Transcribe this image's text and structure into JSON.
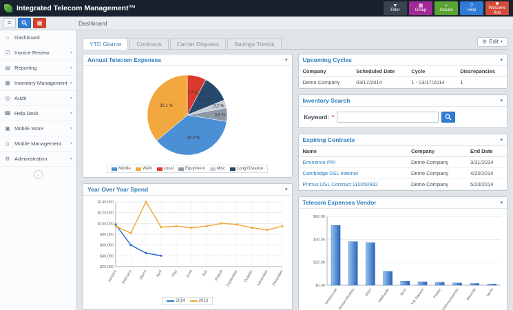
{
  "topbar": {
    "title": "Integrated Telecom Management™",
    "logo_icon": "leaf-icon",
    "buttons": [
      {
        "label": "Filter",
        "icon": "filter-icon",
        "color": "#39424e"
      },
      {
        "label": "Group",
        "icon": "group-icon",
        "color": "#a12b96"
      },
      {
        "label": "Include",
        "icon": "include-icon",
        "color": "#58a434"
      },
      {
        "label": "Help",
        "icon": "help-icon",
        "color": "#2f7cd6"
      },
      {
        "label": "Welcome Rob",
        "icon": "user-icon",
        "color": "#d24a38"
      }
    ]
  },
  "toolbar": {
    "buttons": [
      {
        "name": "menu-button",
        "icon": "menu-icon",
        "style": "plain"
      },
      {
        "name": "search-button",
        "icon": "search-icon",
        "style": "blue"
      },
      {
        "name": "apps-button",
        "icon": "apps-icon",
        "style": "red"
      }
    ],
    "breadcrumb": "Dashboard"
  },
  "sidebar": {
    "items": [
      {
        "label": "Dashboard",
        "icon": "home-icon",
        "expandable": false
      },
      {
        "label": "Invoice Review",
        "icon": "invoice-icon",
        "expandable": true
      },
      {
        "label": "Reporting",
        "icon": "report-icon",
        "expandable": true
      },
      {
        "label": "Inventory Management",
        "icon": "inventory-icon",
        "expandable": true
      },
      {
        "label": "Audit",
        "icon": "audit-icon",
        "expandable": true
      },
      {
        "label": "Help Desk",
        "icon": "helpdesk-icon",
        "expandable": true
      },
      {
        "label": "Mobile Store",
        "icon": "store-icon",
        "expandable": true
      },
      {
        "label": "Mobile Management",
        "icon": "mobile-icon",
        "expandable": true
      },
      {
        "label": "Administration",
        "icon": "admin-icon",
        "expandable": true
      }
    ]
  },
  "tabs": [
    {
      "label": "YTD Glance",
      "active": true
    },
    {
      "label": "Contracts",
      "active": false
    },
    {
      "label": "Carrier Disputes",
      "active": false
    },
    {
      "label": "Savings Trends",
      "active": false
    }
  ],
  "edit_menu": {
    "label": "Edit",
    "icon": "gear-icon"
  },
  "panels": {
    "annual_expenses": {
      "title": "Annual Telecom Expenses",
      "chart_data": {
        "type": "pie",
        "slices": [
          {
            "label": "Local",
            "value": 7.7,
            "color": "#d93a2b"
          },
          {
            "label": "Long Distance",
            "value": 11.2,
            "color": "#27496e"
          },
          {
            "label": "Misc",
            "value": 3.2,
            "color": "#c3cdd6"
          },
          {
            "label": "Equipment",
            "value": 5.5,
            "color": "#8d9aa6"
          },
          {
            "label": "Mobile",
            "value": 36.3,
            "color": "#4b8fd5"
          },
          {
            "label": "WAN",
            "value": 36.1,
            "color": "#f2a83e"
          }
        ],
        "legend_order": [
          "Mobile",
          "WAN",
          "Local",
          "Equipment",
          "Misc",
          "Long Distance"
        ]
      }
    },
    "yoy_spend": {
      "title": "Year Over Year Spend",
      "chart_data": {
        "type": "line",
        "x": [
          "January",
          "February",
          "March",
          "April",
          "May",
          "June",
          "July",
          "August",
          "September",
          "October",
          "November",
          "December"
        ],
        "ylim": [
          20000,
          140000
        ],
        "y_ticks": [
          {
            "value": 20000,
            "label": "$20,000"
          },
          {
            "value": 40000,
            "label": "$40,000"
          },
          {
            "value": 60000,
            "label": "$60,000"
          },
          {
            "value": 80000,
            "label": "$80,000"
          },
          {
            "value": 100000,
            "label": "$100,000"
          },
          {
            "value": 120000,
            "label": "$120,000"
          },
          {
            "value": 140000,
            "label": "$140,000"
          }
        ],
        "series": [
          {
            "name": "2014",
            "color": "#2e6fd4",
            "values": [
              98000,
              60000,
              45000,
              40000,
              null,
              null,
              null,
              null,
              null,
              null,
              null,
              null
            ]
          },
          {
            "name": "2013",
            "color": "#f2a83e",
            "values": [
              95000,
              82000,
              140000,
              93000,
              95000,
              92000,
              95000,
              100000,
              98000,
              92000,
              88000,
              95000
            ]
          }
        ]
      }
    },
    "upcoming_cycles": {
      "title": "Upcoming Cycles",
      "table": {
        "columns": [
          "Company",
          "Scheduled Date",
          "Cycle",
          "Discrepancies"
        ],
        "rows": [
          [
            "Demo Company",
            "03/17/2014",
            "1 - 03/17/2014",
            "1"
          ]
        ]
      }
    },
    "inventory_search": {
      "title": "Inventory Search",
      "keyword_label": "Keyword:",
      "required_marker": "*",
      "keyword_value": ""
    },
    "expiring_contracts": {
      "title": "Expiring Contracts",
      "table": {
        "columns": [
          "Name",
          "Company",
          "End Date"
        ],
        "rows": [
          {
            "name": "Eminence PRI",
            "company": "Demo Company",
            "end_date": "3/31/2014"
          },
          {
            "name": "Cambridge DSL Internet",
            "company": "Demo Company",
            "end_date": "4/20/2014"
          },
          {
            "name": "Primus DSL Contract 110050932",
            "company": "Demo Company",
            "end_date": "5/20/2014"
          }
        ]
      }
    },
    "vendor_expenses": {
      "title": "Telecom Expenses Vendor",
      "chart_data": {
        "type": "bar",
        "categories": [
          "CenturyLink",
          "Verizon Wireless",
          "AT&T",
          "TelePacific",
          "Birch",
          "TW Telecom",
          "Paetec",
          "XO Communications",
          "ShoreTel",
          "Sprint"
        ],
        "values": [
          52,
          38,
          37,
          12,
          3.5,
          3,
          2.5,
          2,
          1.5,
          1
        ],
        "ylim": [
          0,
          60
        ],
        "y_ticks": [
          {
            "value": 0,
            "label": "$0.00"
          },
          {
            "value": 20,
            "label": "$20.00"
          },
          {
            "value": 40,
            "label": "$40.00"
          },
          {
            "value": 60,
            "label": "$60.00"
          }
        ],
        "bar_color_top": "#94c3f0",
        "bar_color_bottom": "#2b63b8"
      }
    }
  }
}
